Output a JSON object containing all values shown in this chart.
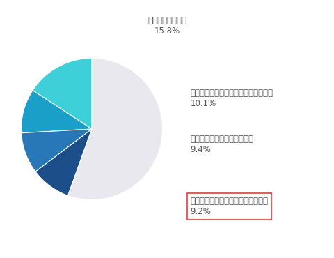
{
  "slices": [
    {
      "label": "予約がとりにくい",
      "pct": "15.8%",
      "value": 15.8,
      "color": "#3DD0D8"
    },
    {
      "label": "接客態度への不満（カウンセリング）",
      "pct": "10.1%",
      "value": 10.1,
      "color": "#1AA0C8"
    },
    {
      "label": "接客態度への不満（照射時）",
      "pct": "9.4%",
      "value": 9.4,
      "color": "#2878B8"
    },
    {
      "label": "期待していた効果が得られていない",
      "pct": "9.2%",
      "value": 9.2,
      "color": "#1C4E8A"
    },
    {
      "label": "",
      "pct": "",
      "value": 55.5,
      "color": "#E8E8EE"
    }
  ],
  "label_fontsize": 8.5,
  "pct_fontsize": 8.5,
  "bg_color": "#ffffff",
  "text_color": "#555555",
  "box_edge_color": "#E06060",
  "start_angle": 90
}
